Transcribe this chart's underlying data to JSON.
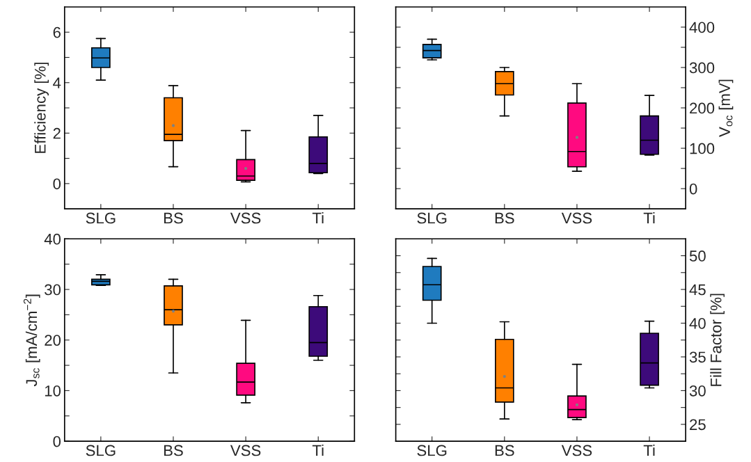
{
  "chart_data": [
    {
      "type": "box",
      "categories": [
        "SLG",
        "BS",
        "VSS",
        "Ti"
      ],
      "ylabel": "Efficiency [%]",
      "ylim": [
        -1,
        7
      ],
      "yticks": [
        0,
        {
          "value": 1,
          "label": null
        },
        2,
        {
          "value": 3,
          "label": null
        },
        4,
        {
          "value": 5,
          "label": null
        },
        6
      ],
      "series": [
        {
          "colors": [
            "#1f7bbf",
            "#ff8000",
            "#ff0a80",
            "#3d0a7a"
          ],
          "boxes": [
            {
              "low": 4.1,
              "q1": 4.6,
              "median": 4.98,
              "q3": 5.38,
              "high": 5.75
            },
            {
              "low": 0.67,
              "q1": 1.7,
              "median": 1.95,
              "q3": 3.4,
              "high": 3.88,
              "mean": 2.3
            },
            {
              "low": 0.07,
              "q1": 0.13,
              "median": 0.3,
              "q3": 0.95,
              "high": 2.1,
              "mean": 0.6
            },
            {
              "low": 0.4,
              "q1": 0.43,
              "median": 0.8,
              "q3": 1.85,
              "high": 2.7
            }
          ]
        }
      ]
    },
    {
      "type": "box",
      "categories": [
        "SLG",
        "BS",
        "VSS",
        "Ti"
      ],
      "y2label": "V$_{oc}$ [mV]",
      "y2lim": [
        -50,
        450
      ],
      "y2ticks": [
        0,
        {
          "value": 50,
          "label": null
        },
        100,
        {
          "value": 150,
          "label": null
        },
        200,
        {
          "value": 250,
          "label": null
        },
        300,
        {
          "value": 350,
          "label": null
        },
        400
      ],
      "series": [
        {
          "axis": "y2",
          "colors": [
            "#1f7bbf",
            "#ff8000",
            "#ff0a80",
            "#3d0a7a"
          ],
          "boxes": [
            {
              "low": 319,
              "q1": 324,
              "median": 342,
              "q3": 357,
              "high": 370
            },
            {
              "low": 180,
              "q1": 232,
              "median": 260,
              "q3": 290,
              "high": 300
            },
            {
              "low": 43,
              "q1": 54,
              "median": 92,
              "q3": 212,
              "high": 260,
              "mean": 127
            },
            {
              "low": 83,
              "q1": 85,
              "median": 120,
              "q3": 180,
              "high": 231
            }
          ]
        }
      ]
    },
    {
      "type": "box",
      "categories": [
        "SLG",
        "BS",
        "VSS",
        "Ti"
      ],
      "ylabel": "J$_{sc}$ [mA/cm$^{−2}$]",
      "ylim": [
        0,
        40
      ],
      "yticks": [
        0,
        {
          "value": 5,
          "label": null
        },
        10,
        {
          "value": 15,
          "label": null
        },
        20,
        {
          "value": 25,
          "label": null
        },
        30,
        {
          "value": 35,
          "label": null
        },
        40
      ],
      "series": [
        {
          "colors": [
            "#1f7bbf",
            "#ff8000",
            "#ff0a80",
            "#3d0a7a"
          ],
          "boxes": [
            {
              "low": 30.8,
              "q1": 30.9,
              "median": 31.6,
              "q3": 32.0,
              "high": 32.9
            },
            {
              "low": 13.5,
              "q1": 23.0,
              "median": 26.0,
              "q3": 30.7,
              "high": 32.0,
              "mean": 25.7
            },
            {
              "low": 7.6,
              "q1": 9.1,
              "median": 11.7,
              "q3": 15.4,
              "high": 23.9
            },
            {
              "low": 16.0,
              "q1": 16.8,
              "median": 19.5,
              "q3": 26.6,
              "high": 28.8
            }
          ]
        }
      ]
    },
    {
      "type": "box",
      "categories": [
        "SLG",
        "BS",
        "VSS",
        "Ti"
      ],
      "y2label": "Fill Factor [%]",
      "y2lim": [
        22.5,
        52.5
      ],
      "y2ticks": [
        25,
        {
          "value": 27.5,
          "label": null
        },
        30,
        {
          "value": 32.5,
          "label": null
        },
        35,
        {
          "value": 37.5,
          "label": null
        },
        40,
        {
          "value": 42.5,
          "label": null
        },
        45,
        {
          "value": 47.5,
          "label": null
        },
        50
      ],
      "series": [
        {
          "axis": "y2",
          "colors": [
            "#1f7bbf",
            "#ff8000",
            "#ff0a80",
            "#3d0a7a"
          ],
          "boxes": [
            {
              "low": 40.0,
              "q1": 43.4,
              "median": 45.7,
              "q3": 48.4,
              "high": 49.6
            },
            {
              "low": 25.8,
              "q1": 28.3,
              "median": 30.4,
              "q3": 37.6,
              "high": 40.2,
              "mean": 32.1
            },
            {
              "low": 25.7,
              "q1": 26.0,
              "median": 27.2,
              "q3": 29.2,
              "high": 33.9,
              "mean": 27.9
            },
            {
              "low": 30.4,
              "q1": 30.8,
              "median": 34.1,
              "q3": 38.5,
              "high": 40.3
            }
          ]
        }
      ]
    }
  ]
}
